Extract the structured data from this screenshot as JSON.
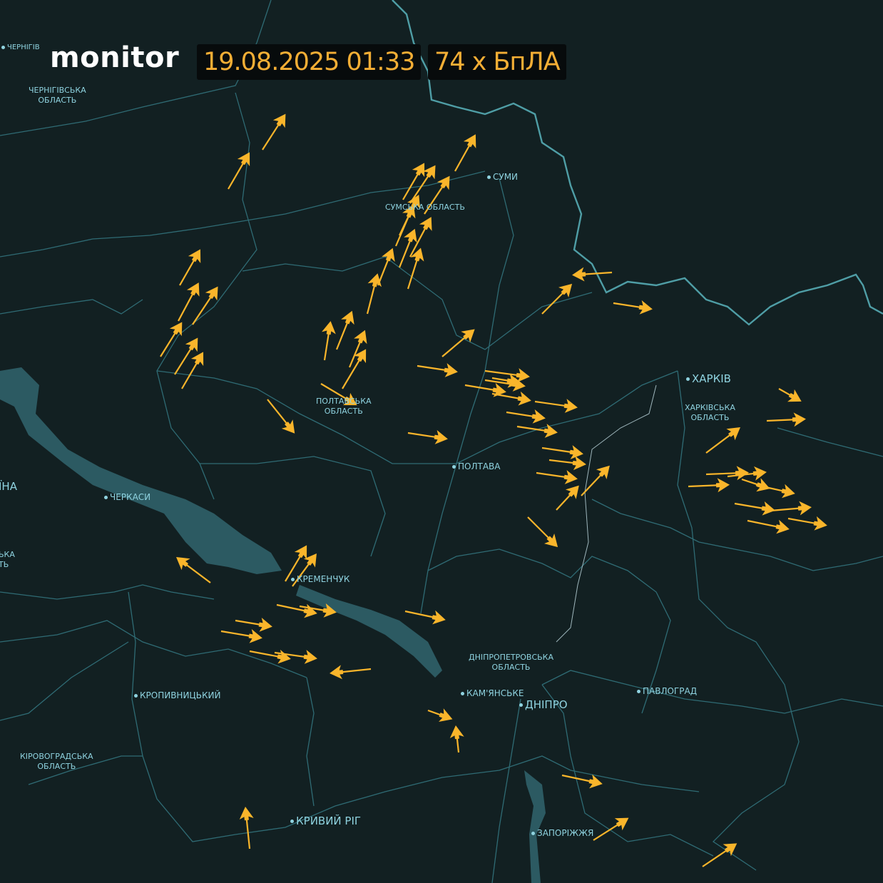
{
  "header": {
    "logo": "monitor",
    "datetime": "19.08.2025 01:33",
    "drone_count_label": "74 x БпЛА"
  },
  "colors": {
    "background": "#122022",
    "admin_lines": "#2f6b74",
    "state_border": "#4f9ea6",
    "water": "#2c5a62",
    "drone": "#f9b52b",
    "label": "#8fd3e0"
  },
  "markers": {
    "icon": "shahed-drone-icon",
    "count": 74
  },
  "cities": {
    "chernihiv": "ЧЕРНІГІВ",
    "sumy": "СУМИ",
    "kharkiv": "ХАРКІВ",
    "poltava": "ПОЛТАВА",
    "cherkasy": "ЧЕРКАСИ",
    "kremenchuk": "КРЕМЕНЧУК",
    "kropyvnytskyi": "КРОПИВНИЦЬКИЙ",
    "kamianske": "КАМ'ЯНСЬКЕ",
    "dnipro": "ДНІПРО",
    "pavlohrad": "ПАВЛОГРАД",
    "kryvyi_rih": "КРИВИЙ РІГ",
    "zaporizhzhia": "ЗАПОРІЖЖЯ"
  },
  "regions": {
    "chernihiv_l1": "ЧЕРНІГІВСЬКА",
    "chernihiv_l2": "ОБЛАСТЬ",
    "sumy": "СУМСЬКА ОБЛАСТЬ",
    "poltava_l1": "ПОЛТАВСЬКА",
    "poltava_l2": "ОБЛАСТЬ",
    "kharkiv_l1": "ХАРКІВСЬКА",
    "kharkiv_l2": "ОБЛАСТЬ",
    "dnipro_l1": "ДНІПРОПЕТРОВСЬКА",
    "dnipro_l2": "ОБЛАСТЬ",
    "kirovohrad_l1": "КІРОВОГРАДСЬКА",
    "kirovohrad_l2": "ОБЛАСТЬ",
    "ukraine_partial": "ЇНА",
    "left_partial_l1": "ЬКА",
    "left_partial_l2": "ТЬ"
  }
}
